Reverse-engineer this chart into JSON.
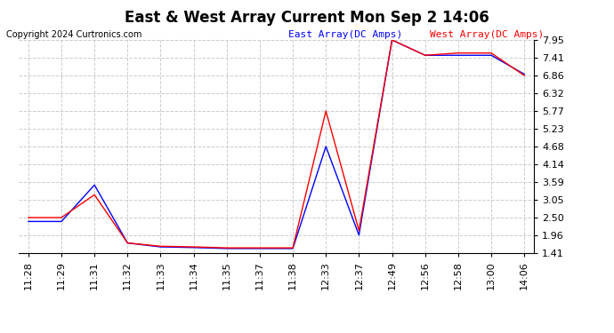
{
  "title": "East & West Array Current Mon Sep 2 14:06",
  "copyright": "Copyright 2024 Curtronics.com",
  "legend_east": "East Array(DC Amps)",
  "legend_west": "West Array(DC Amps)",
  "east_color": "blue",
  "west_color": "red",
  "background_color": "#ffffff",
  "grid_color": "#cccccc",
  "yticks": [
    1.41,
    1.96,
    2.5,
    3.05,
    3.59,
    4.14,
    4.68,
    5.23,
    5.77,
    6.32,
    6.86,
    7.41,
    7.95
  ],
  "xtick_labels": [
    "11:28",
    "11:29",
    "11:31",
    "11:32",
    "11:33",
    "11:34",
    "11:35",
    "11:37",
    "11:38",
    "12:33",
    "12:37",
    "12:49",
    "12:56",
    "12:58",
    "13:00",
    "14:06"
  ],
  "east_values": [
    2.38,
    2.38,
    3.5,
    1.72,
    1.6,
    1.58,
    1.55,
    1.55,
    1.55,
    4.68,
    1.96,
    7.95,
    7.48,
    7.48,
    7.48,
    6.9
  ],
  "west_values": [
    2.5,
    2.5,
    3.2,
    1.72,
    1.62,
    1.6,
    1.57,
    1.57,
    1.57,
    5.77,
    2.1,
    7.95,
    7.48,
    7.55,
    7.55,
    6.86
  ],
  "ylim": [
    1.41,
    7.95
  ],
  "title_fontsize": 12,
  "tick_fontsize": 8,
  "legend_fontsize": 8,
  "copyright_fontsize": 7
}
